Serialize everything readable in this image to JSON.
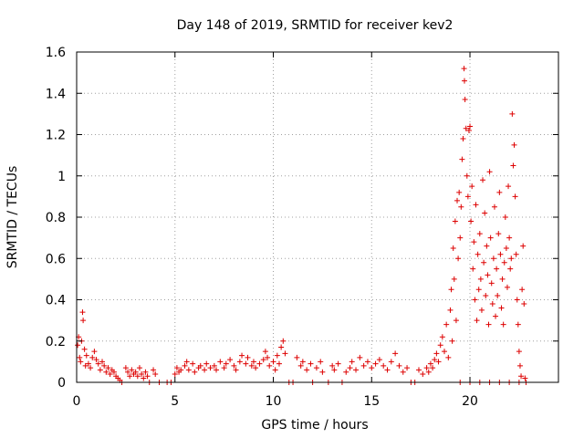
{
  "chart_data": {
    "type": "scatter",
    "title": "Day 148 of 2019, SRMTID for receiver kev2",
    "xlabel": "GPS time / hours",
    "ylabel": "SRMTID / TECUs",
    "xlim": [
      0,
      24.5
    ],
    "ylim": [
      0,
      1.6
    ],
    "xticks": [
      0,
      5,
      10,
      15,
      20
    ],
    "xtick_labels": [
      "0",
      "5",
      "10",
      "15",
      "20"
    ],
    "yticks": [
      0,
      0.2,
      0.4,
      0.6,
      0.8,
      1,
      1.2,
      1.4,
      1.6
    ],
    "ytick_labels": [
      "0",
      "0.2",
      "0.4",
      "0.6",
      "0.8",
      "1",
      "1.2",
      "1.4",
      "1.6"
    ],
    "grid": true,
    "marker": "+",
    "color": "#dd0000",
    "series": [
      {
        "name": "SRMTID",
        "points": [
          [
            0.05,
            0.18
          ],
          [
            0.1,
            0.22
          ],
          [
            0.15,
            0.12
          ],
          [
            0.2,
            0.1
          ],
          [
            0.25,
            0.2
          ],
          [
            0.3,
            0.34
          ],
          [
            0.33,
            0.3
          ],
          [
            0.4,
            0.16
          ],
          [
            0.45,
            0.08
          ],
          [
            0.5,
            0.13
          ],
          [
            0.6,
            0.09
          ],
          [
            0.7,
            0.07
          ],
          [
            0.8,
            0.12
          ],
          [
            0.9,
            0.15
          ],
          [
            1.0,
            0.11
          ],
          [
            1.1,
            0.09
          ],
          [
            1.2,
            0.06
          ],
          [
            1.3,
            0.1
          ],
          [
            1.4,
            0.08
          ],
          [
            1.5,
            0.05
          ],
          [
            1.6,
            0.07
          ],
          [
            1.7,
            0.04
          ],
          [
            1.8,
            0.06
          ],
          [
            1.9,
            0.05
          ],
          [
            2.0,
            0.03
          ],
          [
            2.1,
            0.02
          ],
          [
            2.2,
            0.01
          ],
          [
            2.3,
            0.0
          ],
          [
            2.5,
            0.07
          ],
          [
            2.6,
            0.05
          ],
          [
            2.7,
            0.03
          ],
          [
            2.8,
            0.06
          ],
          [
            2.9,
            0.04
          ],
          [
            3.0,
            0.05
          ],
          [
            3.1,
            0.03
          ],
          [
            3.2,
            0.07
          ],
          [
            3.3,
            0.04
          ],
          [
            3.4,
            0.02
          ],
          [
            3.5,
            0.05
          ],
          [
            3.6,
            0.03
          ],
          [
            3.7,
            0.0
          ],
          [
            3.9,
            0.06
          ],
          [
            4.0,
            0.04
          ],
          [
            4.2,
            0.0
          ],
          [
            4.6,
            0.0
          ],
          [
            4.8,
            0.0
          ],
          [
            5.0,
            0.04
          ],
          [
            5.1,
            0.07
          ],
          [
            5.2,
            0.05
          ],
          [
            5.3,
            0.06
          ],
          [
            5.5,
            0.08
          ],
          [
            5.6,
            0.1
          ],
          [
            5.7,
            0.06
          ],
          [
            5.9,
            0.09
          ],
          [
            6.0,
            0.05
          ],
          [
            6.2,
            0.07
          ],
          [
            6.3,
            0.08
          ],
          [
            6.5,
            0.06
          ],
          [
            6.6,
            0.09
          ],
          [
            6.8,
            0.07
          ],
          [
            7.0,
            0.08
          ],
          [
            7.1,
            0.06
          ],
          [
            7.3,
            0.1
          ],
          [
            7.5,
            0.07
          ],
          [
            7.6,
            0.09
          ],
          [
            7.8,
            0.11
          ],
          [
            8.0,
            0.08
          ],
          [
            8.1,
            0.06
          ],
          [
            8.3,
            0.1
          ],
          [
            8.4,
            0.13
          ],
          [
            8.6,
            0.09
          ],
          [
            8.7,
            0.12
          ],
          [
            8.9,
            0.08
          ],
          [
            9.0,
            0.1
          ],
          [
            9.1,
            0.07
          ],
          [
            9.3,
            0.09
          ],
          [
            9.5,
            0.11
          ],
          [
            9.6,
            0.15
          ],
          [
            9.7,
            0.12
          ],
          [
            9.8,
            0.08
          ],
          [
            10.0,
            0.1
          ],
          [
            10.1,
            0.06
          ],
          [
            10.2,
            0.13
          ],
          [
            10.3,
            0.09
          ],
          [
            10.4,
            0.17
          ],
          [
            10.5,
            0.2
          ],
          [
            10.6,
            0.14
          ],
          [
            10.8,
            0.0
          ],
          [
            11.0,
            0.0
          ],
          [
            11.2,
            0.12
          ],
          [
            11.4,
            0.08
          ],
          [
            11.5,
            0.1
          ],
          [
            11.7,
            0.06
          ],
          [
            11.9,
            0.09
          ],
          [
            12.0,
            0.0
          ],
          [
            12.2,
            0.07
          ],
          [
            12.4,
            0.1
          ],
          [
            12.5,
            0.05
          ],
          [
            12.8,
            0.0
          ],
          [
            13.0,
            0.08
          ],
          [
            13.1,
            0.06
          ],
          [
            13.3,
            0.09
          ],
          [
            13.5,
            0.0
          ],
          [
            13.7,
            0.05
          ],
          [
            13.9,
            0.07
          ],
          [
            14.0,
            0.1
          ],
          [
            14.2,
            0.06
          ],
          [
            14.4,
            0.12
          ],
          [
            14.6,
            0.08
          ],
          [
            14.8,
            0.1
          ],
          [
            15.0,
            0.07
          ],
          [
            15.2,
            0.09
          ],
          [
            15.4,
            0.11
          ],
          [
            15.6,
            0.08
          ],
          [
            15.8,
            0.06
          ],
          [
            16.0,
            0.1
          ],
          [
            16.2,
            0.14
          ],
          [
            16.4,
            0.08
          ],
          [
            16.6,
            0.05
          ],
          [
            16.8,
            0.07
          ],
          [
            17.0,
            0.0
          ],
          [
            17.2,
            0.0
          ],
          [
            17.4,
            0.06
          ],
          [
            17.6,
            0.04
          ],
          [
            17.8,
            0.07
          ],
          [
            17.9,
            0.05
          ],
          [
            18.0,
            0.09
          ],
          [
            18.1,
            0.07
          ],
          [
            18.2,
            0.11
          ],
          [
            18.3,
            0.14
          ],
          [
            18.4,
            0.1
          ],
          [
            18.5,
            0.18
          ],
          [
            18.6,
            0.22
          ],
          [
            18.7,
            0.15
          ],
          [
            18.8,
            0.28
          ],
          [
            18.9,
            0.12
          ],
          [
            19.0,
            0.35
          ],
          [
            19.05,
            0.45
          ],
          [
            19.1,
            0.2
          ],
          [
            19.15,
            0.65
          ],
          [
            19.2,
            0.5
          ],
          [
            19.25,
            0.78
          ],
          [
            19.3,
            0.3
          ],
          [
            19.35,
            0.88
          ],
          [
            19.4,
            0.6
          ],
          [
            19.45,
            0.92
          ],
          [
            19.5,
            0.7
          ],
          [
            19.55,
            0.85
          ],
          [
            19.6,
            1.08
          ],
          [
            19.65,
            1.18
          ],
          [
            19.7,
            1.52
          ],
          [
            19.72,
            1.46
          ],
          [
            19.75,
            1.37
          ],
          [
            19.8,
            1.23
          ],
          [
            19.85,
            1.0
          ],
          [
            19.9,
            0.9
          ],
          [
            19.95,
            1.22
          ],
          [
            20.0,
            1.24
          ],
          [
            20.05,
            0.78
          ],
          [
            20.1,
            0.95
          ],
          [
            20.15,
            0.55
          ],
          [
            20.2,
            0.68
          ],
          [
            20.25,
            0.4
          ],
          [
            20.3,
            0.86
          ],
          [
            20.35,
            0.3
          ],
          [
            20.4,
            0.62
          ],
          [
            20.45,
            0.45
          ],
          [
            20.5,
            0.72
          ],
          [
            20.55,
            0.5
          ],
          [
            20.6,
            0.35
          ],
          [
            20.65,
            0.98
          ],
          [
            20.7,
            0.58
          ],
          [
            20.75,
            0.82
          ],
          [
            20.8,
            0.42
          ],
          [
            20.85,
            0.66
          ],
          [
            20.9,
            0.52
          ],
          [
            20.95,
            0.28
          ],
          [
            21.0,
            1.02
          ],
          [
            21.05,
            0.7
          ],
          [
            21.1,
            0.48
          ],
          [
            21.15,
            0.38
          ],
          [
            21.2,
            0.6
          ],
          [
            21.25,
            0.85
          ],
          [
            21.3,
            0.32
          ],
          [
            21.35,
            0.55
          ],
          [
            21.4,
            0.42
          ],
          [
            21.45,
            0.72
          ],
          [
            21.5,
            0.92
          ],
          [
            21.55,
            0.62
          ],
          [
            21.6,
            0.36
          ],
          [
            21.65,
            0.5
          ],
          [
            21.7,
            0.28
          ],
          [
            21.75,
            0.58
          ],
          [
            21.8,
            0.8
          ],
          [
            21.85,
            0.65
          ],
          [
            21.9,
            0.46
          ],
          [
            21.95,
            0.95
          ],
          [
            22.0,
            0.7
          ],
          [
            22.05,
            0.55
          ],
          [
            22.1,
            0.6
          ],
          [
            22.15,
            1.3
          ],
          [
            22.2,
            1.05
          ],
          [
            22.25,
            1.15
          ],
          [
            22.3,
            0.9
          ],
          [
            22.35,
            0.62
          ],
          [
            22.4,
            0.4
          ],
          [
            22.45,
            0.28
          ],
          [
            22.5,
            0.15
          ],
          [
            22.55,
            0.08
          ],
          [
            22.6,
            0.03
          ],
          [
            22.65,
            0.45
          ],
          [
            22.7,
            0.66
          ],
          [
            22.75,
            0.38
          ],
          [
            22.8,
            0.02
          ],
          [
            22.85,
            0.0
          ],
          [
            19.5,
            0.0
          ],
          [
            20.0,
            0.0
          ],
          [
            20.5,
            0.0
          ],
          [
            21.0,
            0.0
          ],
          [
            21.5,
            0.0
          ],
          [
            22.0,
            0.0
          ],
          [
            22.5,
            0.0
          ]
        ]
      }
    ]
  }
}
